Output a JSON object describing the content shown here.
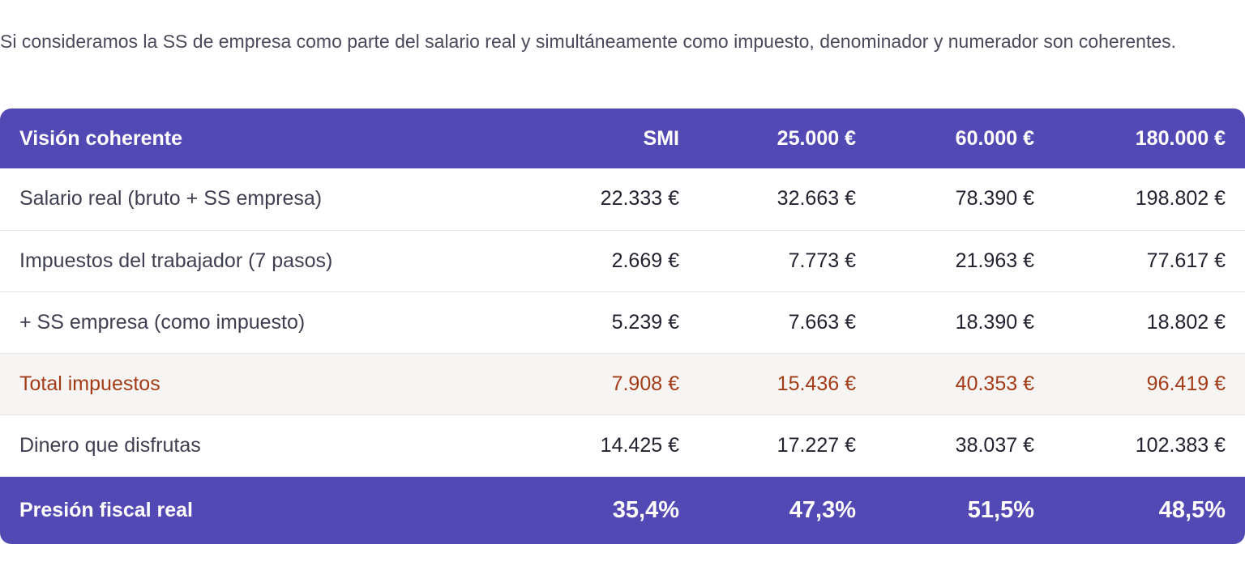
{
  "intro_text": "Si consideramos la SS de empresa como parte del salario real y simultáneamente como impuesto, denominador y numerador son coherentes.",
  "table": {
    "headers": [
      "Visión coherente",
      "SMI",
      "25.000 €",
      "60.000 €",
      "180.000 €"
    ],
    "rows": [
      {
        "label": "Salario real (bruto + SS empresa)",
        "values": [
          "22.333 €",
          "32.663 €",
          "78.390 €",
          "198.802 €"
        ],
        "highlight": false
      },
      {
        "label": "Impuestos del trabajador (7 pasos)",
        "values": [
          "2.669 €",
          "7.773 €",
          "21.963 €",
          "77.617 €"
        ],
        "highlight": false
      },
      {
        "label": "+ SS empresa (como impuesto)",
        "values": [
          "5.239 €",
          "7.663 €",
          "18.390 €",
          "18.802 €"
        ],
        "highlight": false
      },
      {
        "label": "Total impuestos",
        "values": [
          "7.908 €",
          "15.436 €",
          "40.353 €",
          "96.419 €"
        ],
        "highlight": true
      },
      {
        "label": "Dinero que disfrutas",
        "values": [
          "14.425 €",
          "17.227 €",
          "38.037 €",
          "102.383 €"
        ],
        "highlight": false
      }
    ],
    "footer": {
      "label": "Presión fiscal real",
      "values": [
        "35,4%",
        "47,3%",
        "51,5%",
        "48,5%"
      ]
    }
  },
  "colors": {
    "header_bg": "#5249b5",
    "highlight_text": "#a33b17",
    "highlight_bg": "#f6f5f3"
  }
}
